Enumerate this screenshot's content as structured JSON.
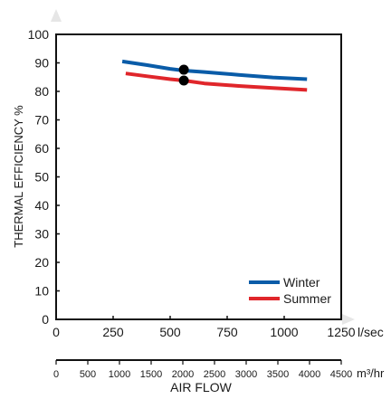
{
  "chart_data": {
    "type": "line",
    "ylabel": "THERMAL EFFICIENCY %",
    "xlabel": "AIR FLOW",
    "ylim": [
      0,
      100
    ],
    "y_ticks": [
      "0",
      "10",
      "20",
      "30",
      "40",
      "50",
      "60",
      "70",
      "80",
      "90",
      "100"
    ],
    "y_tick_values": [
      0,
      10,
      20,
      30,
      40,
      50,
      60,
      70,
      80,
      90,
      100
    ],
    "xlim": [
      0,
      1250
    ],
    "x_ticks": [
      "0",
      "250",
      "500",
      "750",
      "1000",
      "1250"
    ],
    "x_tick_values": [
      0,
      250,
      500,
      750,
      1000,
      1250
    ],
    "x_unit": "l/sec",
    "x2_ticks": [
      "0",
      "500",
      "1000",
      "1500",
      "2000",
      "2500",
      "3000",
      "3500",
      "4000",
      "4500"
    ],
    "x2_tick_values": [
      0,
      500,
      1000,
      1500,
      2000,
      2500,
      3000,
      3500,
      4000,
      4500
    ],
    "x2_unit": "m³/hr",
    "x2_lim": [
      0,
      4500
    ],
    "grid": false,
    "legend_position": "bottom-right",
    "series": [
      {
        "name": "Winter",
        "color": "#0a5ca8",
        "x": [
          290,
          400,
          500,
          560,
          650,
          800,
          950,
          1100
        ],
        "y": [
          90.5,
          89.2,
          87.9,
          87.3,
          86.8,
          85.8,
          84.9,
          84.3
        ]
      },
      {
        "name": "Summer",
        "color": "#e0262b",
        "x": [
          305,
          400,
          500,
          560,
          650,
          800,
          950,
          1100
        ],
        "y": [
          86.3,
          85.3,
          84.3,
          83.8,
          82.8,
          81.9,
          81.2,
          80.5
        ]
      }
    ],
    "markers": [
      {
        "x": 560,
        "y": 87.6,
        "color": "#000000"
      },
      {
        "x": 560,
        "y": 83.8,
        "color": "#000000"
      }
    ]
  }
}
